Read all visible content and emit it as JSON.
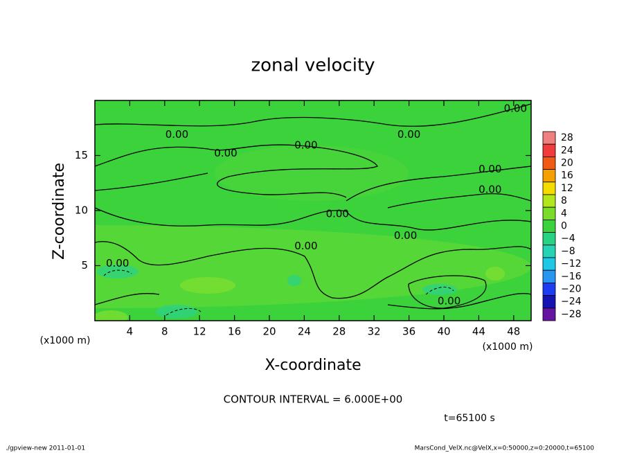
{
  "chart_data": {
    "type": "contour",
    "title": "zonal velocity",
    "x_label": "X-coordinate",
    "y_label": "Z-coordinate",
    "x_unit": "(x1000 m)",
    "xlim": [
      0,
      50
    ],
    "ylim": [
      0,
      20
    ],
    "xticks": [
      4,
      8,
      12,
      16,
      20,
      24,
      28,
      32,
      36,
      40,
      44,
      48
    ],
    "yticks": [
      5,
      10,
      15
    ],
    "colorbar": {
      "levels": [
        28,
        24,
        20,
        16,
        12,
        8,
        4,
        0,
        -4,
        -8,
        -12,
        -16,
        -20,
        -24,
        -28
      ],
      "labels": [
        "28",
        "24",
        "20",
        "16",
        "12",
        "8",
        "4",
        "0",
        "−4",
        "−8",
        "−12",
        "−16",
        "−20",
        "−24",
        "−28"
      ],
      "colors": [
        "#f08080",
        "#f03c3c",
        "#f05a14",
        "#f5a000",
        "#f5dc00",
        "#b4e61e",
        "#78dc28",
        "#3cd23c",
        "#28d282",
        "#28d2b4",
        "#1ec8e6",
        "#2896f0",
        "#1e3cf0",
        "#1414b4",
        "#6414a0"
      ]
    },
    "contour_labels": [
      {
        "text": "0.00",
        "x": 48.2,
        "y": 19.25
      },
      {
        "text": "0.00",
        "x": 9.4,
        "y": 16.9
      },
      {
        "text": "0.00",
        "x": 24.2,
        "y": 15.9
      },
      {
        "text": "0.00",
        "x": 36.0,
        "y": 16.9
      },
      {
        "text": "0.00",
        "x": 15.0,
        "y": 15.2
      },
      {
        "text": "0.00",
        "x": 45.3,
        "y": 13.75
      },
      {
        "text": "0.00",
        "x": 45.3,
        "y": 11.9
      },
      {
        "text": "0.00",
        "x": 27.8,
        "y": 9.7
      },
      {
        "text": "0.00",
        "x": 35.6,
        "y": 7.7
      },
      {
        "text": "0.00",
        "x": 24.2,
        "y": 6.75
      },
      {
        "text": "0.00",
        "x": 2.6,
        "y": 5.2
      },
      {
        "text": "0.00",
        "x": 40.6,
        "y": 1.75
      }
    ],
    "contour_interval": "CONTOUR INTERVAL = 6.000E+00",
    "time_label": "t=65100 s",
    "footer_left": "./gpview-new  2011-01-01",
    "footer_right": "MarsCond_VelX.nc@VelX,x=0:50000,z=0:20000,t=65100"
  }
}
